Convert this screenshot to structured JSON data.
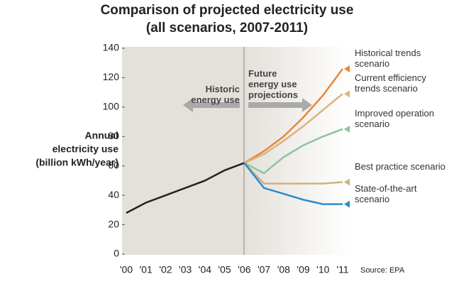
{
  "chart_data": {
    "type": "line",
    "title": "Comparison of projected electricity use",
    "subtitle": "(all scenarios, 2007-2011)",
    "ylabel": [
      "Annual",
      "electricity use",
      "(billion kWh/year)"
    ],
    "categories": [
      "'00",
      "'01",
      "'02",
      "'03",
      "'04",
      "'05",
      "'06",
      "'07",
      "'08",
      "'09",
      "'10",
      "'11"
    ],
    "ylim": [
      0,
      140
    ],
    "yticks": [
      0,
      20,
      40,
      60,
      80,
      100,
      120,
      140
    ],
    "grid": false,
    "annotations": [
      [
        "Historic",
        "energy use"
      ],
      [
        "Future",
        "energy use",
        "projections"
      ]
    ],
    "source": "Source: EPA",
    "series": [
      {
        "name": null,
        "color": "#222222",
        "values": [
          28,
          35,
          40,
          45,
          50,
          57,
          62,
          null,
          null,
          null,
          null,
          null
        ]
      },
      {
        "name": "Historical trends scenario",
        "color": "#e8873a",
        "values": [
          null,
          null,
          null,
          null,
          null,
          null,
          62,
          70,
          80,
          93,
          108,
          126
        ]
      },
      {
        "name": "Current efficiency trends scenario",
        "color": "#d9b37f",
        "values": [
          null,
          null,
          null,
          null,
          null,
          null,
          62,
          68,
          77,
          87,
          98,
          109
        ]
      },
      {
        "name": "Improved operation scenario",
        "color": "#8cc4a0",
        "values": [
          null,
          null,
          null,
          null,
          null,
          null,
          62,
          55,
          66,
          74,
          80,
          85
        ]
      },
      {
        "name": "Best practice scenario",
        "color": "#cdb27c",
        "values": [
          null,
          null,
          null,
          null,
          null,
          null,
          62,
          48,
          48,
          48,
          48,
          49
        ]
      },
      {
        "name": "State-of-the-art scenario",
        "color": "#2b8ccf",
        "values": [
          null,
          null,
          null,
          null,
          null,
          null,
          62,
          45,
          41,
          37,
          34,
          34
        ]
      }
    ]
  }
}
